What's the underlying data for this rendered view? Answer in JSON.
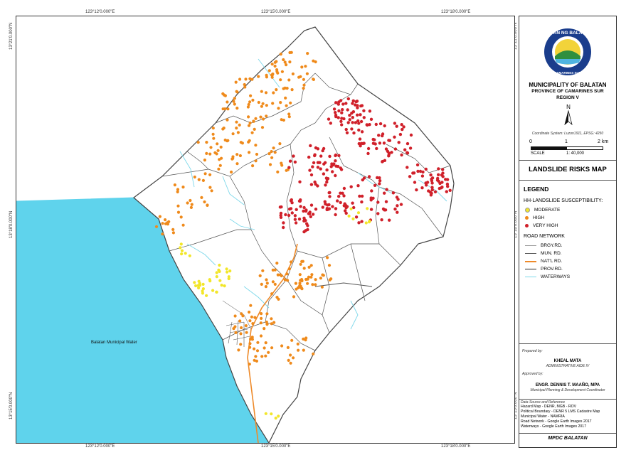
{
  "coordinates": {
    "top": [
      "123°12'0.000\"E",
      "123°15'0.000\"E",
      "123°18'0.000\"E"
    ],
    "bottom": [
      "123°12'0.000\"E",
      "123°15'0.000\"E",
      "123°18'0.000\"E"
    ],
    "left": [
      "13°21'0.000\"N",
      "13°18'0.000\"N",
      "13°15'0.000\"N"
    ],
    "right": [
      "13°21'0.000\"N",
      "13°18'0.000\"N",
      "13°15'0.000\"N"
    ]
  },
  "map": {
    "water_label": "Balatan Municipal Water",
    "colors": {
      "sea": "#5fd3ec",
      "land": "#ffffff",
      "boundary": "#4a4a4a",
      "moderate": "#f2e62a",
      "high": "#ef8a1b",
      "very_high": "#d0202a",
      "nat_road": "#ee8a2a",
      "waterways": "#7dd8ea"
    }
  },
  "panel": {
    "seal_text": "BAYAN NG BALATAN",
    "seal_bottom_text": "CAMARINES SUR",
    "municipality": "MUNICIPALITY OF BALATAN",
    "province": "PROVINCE OF CAMARINES SUR",
    "region": "REGION V",
    "north": "N",
    "coord_system": "Coordinate System: Luzon1911, EPSG: 4250",
    "scale_ticks": [
      "0",
      "1",
      "2 km"
    ],
    "scale_label": "SCALE",
    "scale_ratio": "1: 40,000",
    "map_title": "LANDSLIDE RISKS MAP",
    "legend_title": "LEGEND",
    "hazard_title": "HH-LANDSLIDE SUSCEPTIBILITY:",
    "hazard_items": [
      "MODERATE",
      "HIGH",
      "VERY HIGH"
    ],
    "road_title": "ROAD NETWORK",
    "road_items": [
      "BRGY.RD.",
      "MUN. RD.",
      "NAT'L RD.",
      "PROV.RD.",
      "WATERWAYS"
    ],
    "prepared_by_label": "Prepared by:",
    "preparer_name": "KHEAL MATA",
    "preparer_title": "ADMINISTRATIVE AIDE IV",
    "approved_by_label": "Approved by:",
    "approver_name": "ENGR. DENNIS T. MAAÑO, MPA",
    "approver_title": "Municipal Planning & Development Coordinator",
    "source_label": "Data Source and Reference",
    "sources": [
      "Hazard Map - DENR, MGB - ROV",
      "Political Boundary - DENR 5 LMS Cadastre Map",
      "Municipal Water - NAMRIA",
      "Road Network - Google Earth Images 2017",
      "Waterways - Google Earth Images 2017"
    ],
    "office": "MPDC BALATAN"
  }
}
